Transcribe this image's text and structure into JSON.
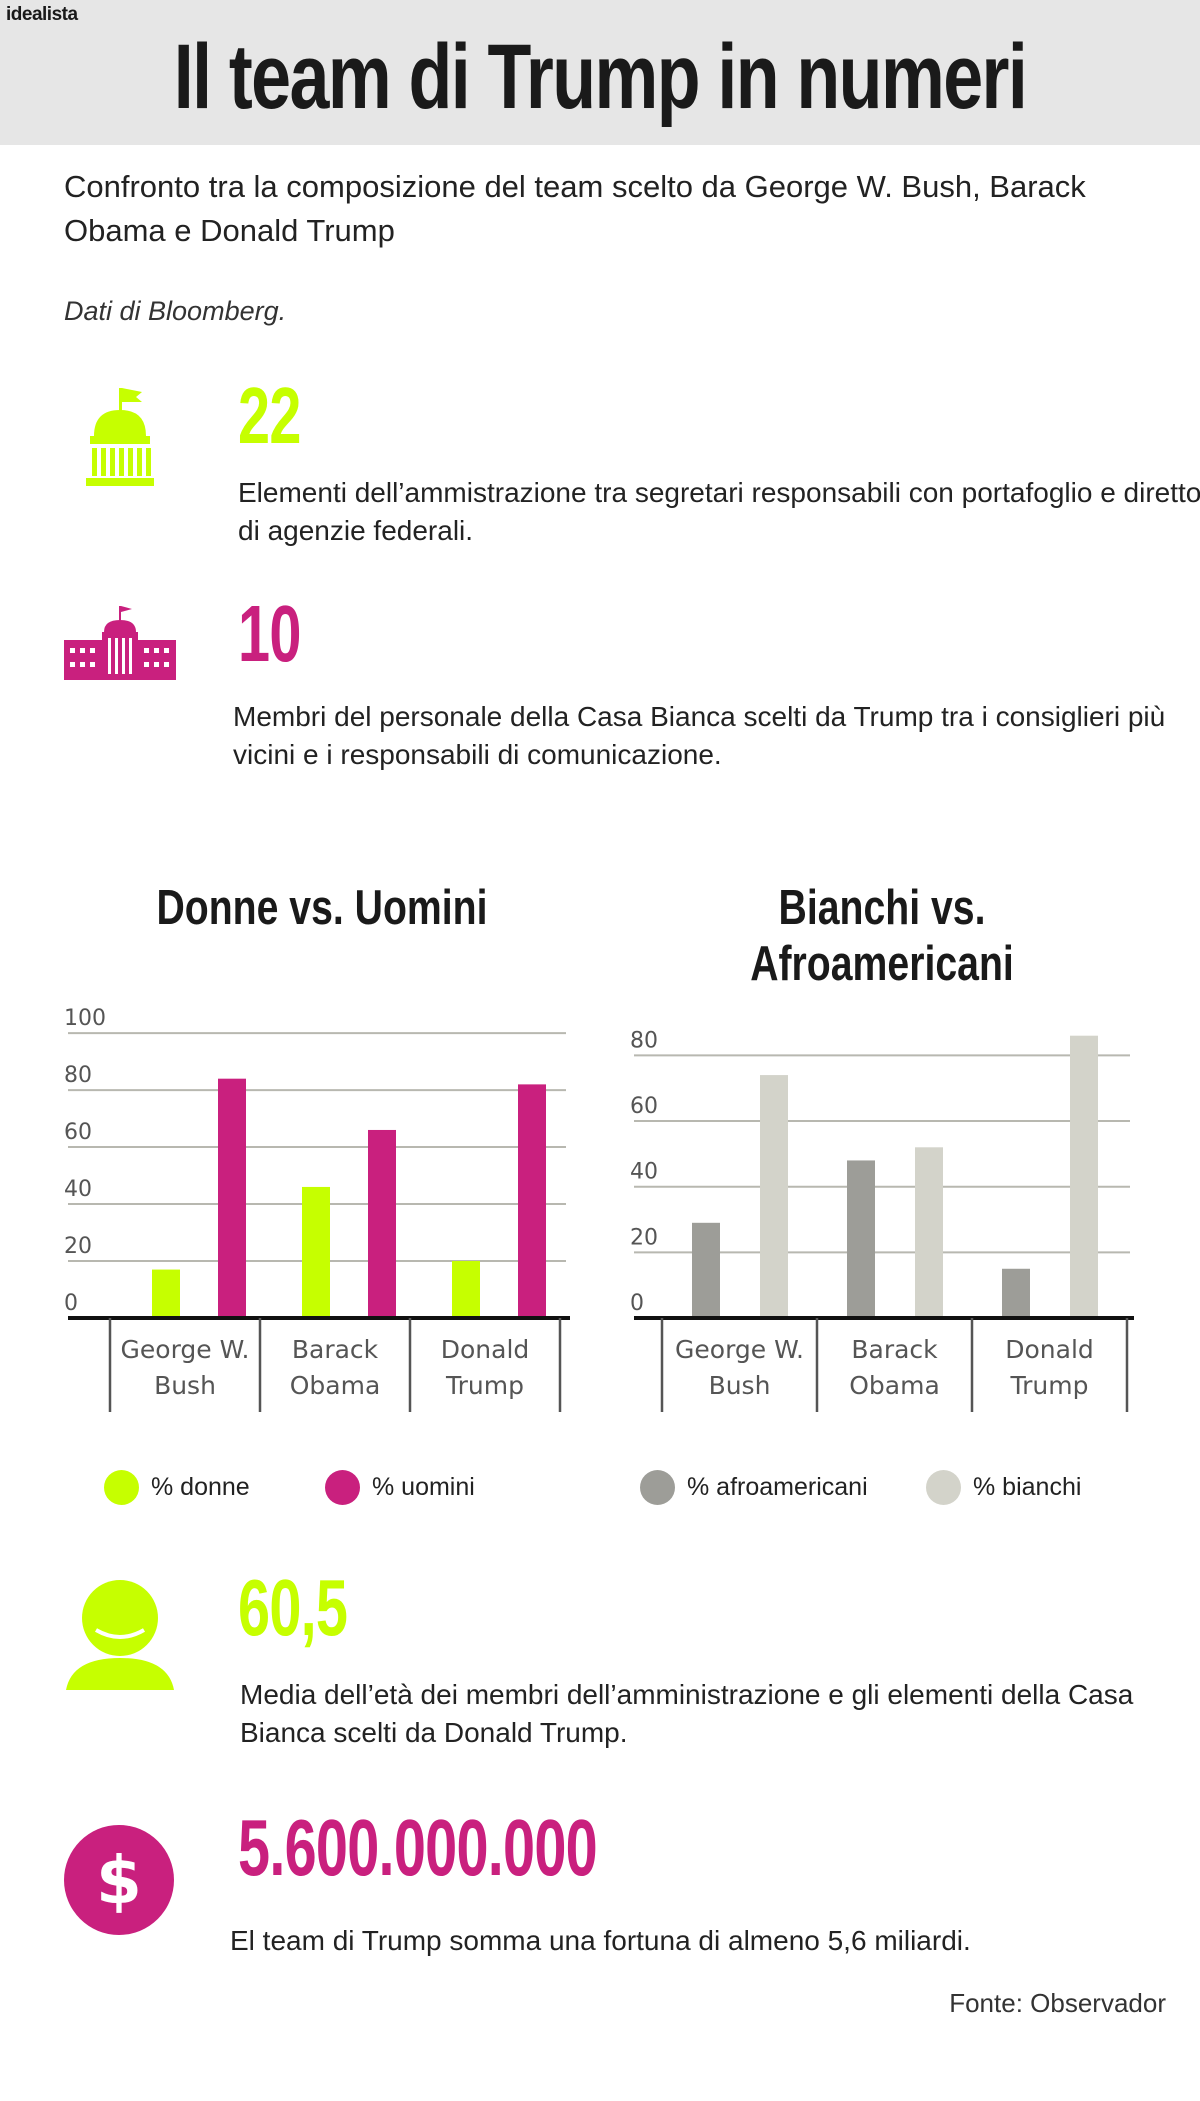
{
  "header": {
    "brand": "idealista",
    "title": "Il team di Trump in numeri"
  },
  "intro": {
    "subtitle": "Confronto tra la composizione del team scelto da George W. Bush, Barack Obama e Donald Trump",
    "source_note": "Dati di Bloomberg."
  },
  "stats": [
    {
      "icon": "capitol-icon",
      "number": "22",
      "description": "Elementi dell’ammistrazione tra segretari responsabili con portafoglio e direttori di agenzie federali.",
      "color": "#c6ff00"
    },
    {
      "icon": "white-house-icon",
      "number": "10",
      "description": "Membri del personale della Casa Bianca scelti da Trump tra i consiglieri più vicini e i responsabili di comunicazione.",
      "color": "#c9207e"
    },
    {
      "icon": "person-icon",
      "number": "60,5",
      "description": "Media dell’età dei membri dell’amministrazione e gli elementi della Casa Bianca scelti da Donald Trump.",
      "color": "#c6ff00"
    },
    {
      "icon": "dollar-icon",
      "number": "5.600.000.000",
      "description": "El team di Trump somma una fortuna di almeno 5,6 miliardi.",
      "color": "#c9207e"
    }
  ],
  "chart_data": [
    {
      "type": "bar",
      "title": "Donne vs. Uomini",
      "categories": [
        "George W. Bush",
        "Barack Obama",
        "Donald Trump"
      ],
      "category_lines": [
        [
          "George W.",
          "Bush"
        ],
        [
          "Barack",
          "Obama"
        ],
        [
          "Donald",
          "Trump"
        ]
      ],
      "series": [
        {
          "name": "% donne",
          "color": "#c6ff00",
          "values": [
            17,
            46,
            20
          ]
        },
        {
          "name": "% uomini",
          "color": "#c9207e",
          "values": [
            84,
            66,
            82
          ]
        }
      ],
      "yticks": [
        0,
        20,
        40,
        60,
        80,
        100
      ],
      "ylim": [
        0,
        106
      ],
      "grid": true
    },
    {
      "type": "bar",
      "title": "Bianchi vs. Afroamericani",
      "categories": [
        "George W. Bush",
        "Barack Obama",
        "Donald Trump"
      ],
      "category_lines": [
        [
          "George W.",
          "Bush"
        ],
        [
          "Barack",
          "Obama"
        ],
        [
          "Donald",
          "Trump"
        ]
      ],
      "series": [
        {
          "name": "% afroamericani",
          "color": "#9d9d98",
          "values": [
            29,
            48,
            15
          ]
        },
        {
          "name": "% bianchi",
          "color": "#d3d3ca",
          "values": [
            74,
            52,
            86
          ]
        }
      ],
      "yticks": [
        0,
        20,
        40,
        60,
        80
      ],
      "ylim": [
        0,
        92
      ],
      "grid": true
    }
  ],
  "footer": {
    "source": "Fonte: Observador"
  }
}
